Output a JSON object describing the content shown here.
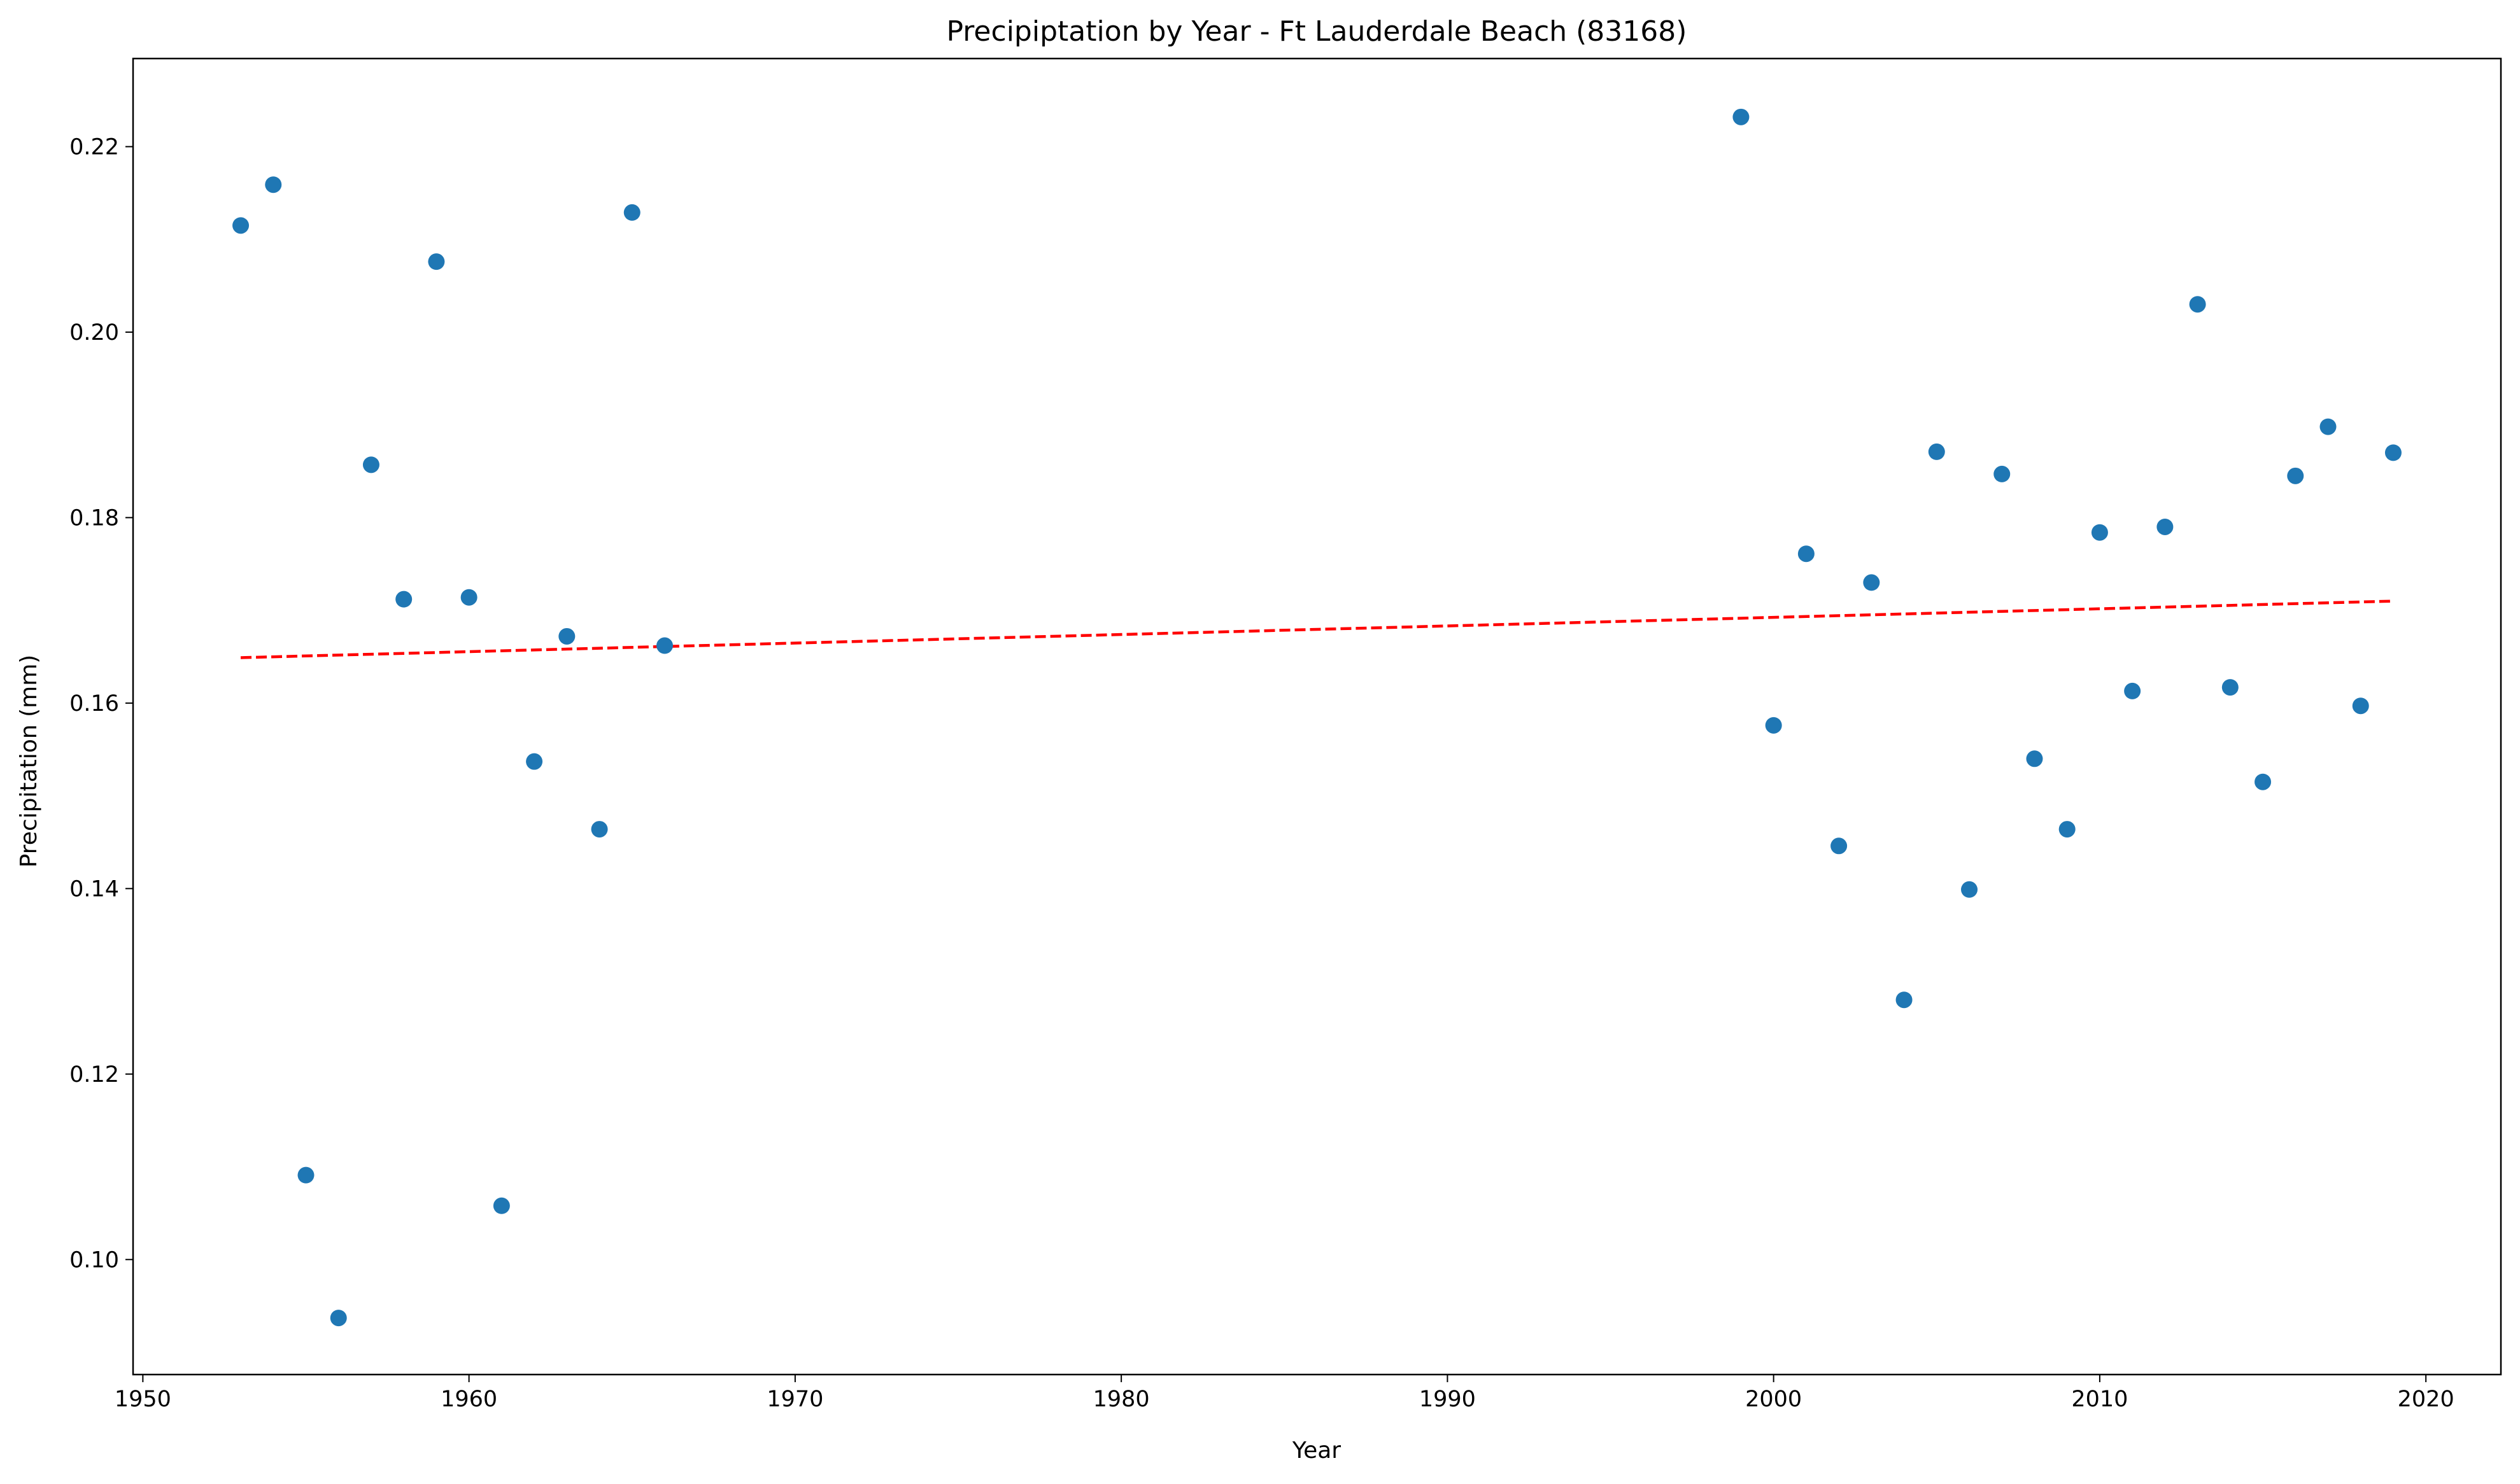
{
  "chart_data": {
    "type": "scatter",
    "title": "Precipiptation by Year - Ft Lauderdale Beach (83168)",
    "xlabel": "Year",
    "ylabel": "Precipitation (mm)",
    "xlim": [
      1949.7,
      2022.3
    ],
    "ylim": [
      0.0876,
      0.2295
    ],
    "xticks": [
      1950,
      1960,
      1970,
      1980,
      1990,
      2000,
      2010,
      2020
    ],
    "yticks": [
      0.1,
      0.12,
      0.14,
      0.16,
      0.18,
      0.2,
      0.22
    ],
    "ytick_labels": [
      "0.10",
      "0.12",
      "0.14",
      "0.16",
      "0.18",
      "0.20",
      "0.22"
    ],
    "grid": false,
    "marker_color": "#1f77b4",
    "trend_color": "#ff0000",
    "series": [
      {
        "x": [
          1953,
          1954,
          1955,
          1956,
          1957,
          1958,
          1959,
          1960,
          1961,
          1962,
          1963,
          1964,
          1965,
          1966,
          1999,
          2000,
          2001,
          2002,
          2003,
          2004,
          2005,
          2006,
          2007,
          2008,
          2009,
          2010,
          2011,
          2012,
          2013,
          2014,
          2015,
          2016,
          2017,
          2018,
          2019
        ],
        "y": [
          0.2115,
          0.2159,
          0.1091,
          0.0937,
          0.1857,
          0.1712,
          0.2076,
          0.1714,
          0.1058,
          0.1537,
          0.1672,
          0.1464,
          0.2129,
          0.1662,
          0.2232,
          0.1576,
          0.1761,
          0.1446,
          0.173,
          0.128,
          0.1871,
          0.1399,
          0.1847,
          0.154,
          0.1464,
          0.1784,
          0.1613,
          0.179,
          0.203,
          0.1617,
          0.1515,
          0.1845,
          0.1898,
          0.1597,
          0.187
        ]
      }
    ],
    "trendline": {
      "x": [
        1953,
        2019
      ],
      "y": [
        0.1649,
        0.171
      ],
      "style": "dashed"
    }
  }
}
